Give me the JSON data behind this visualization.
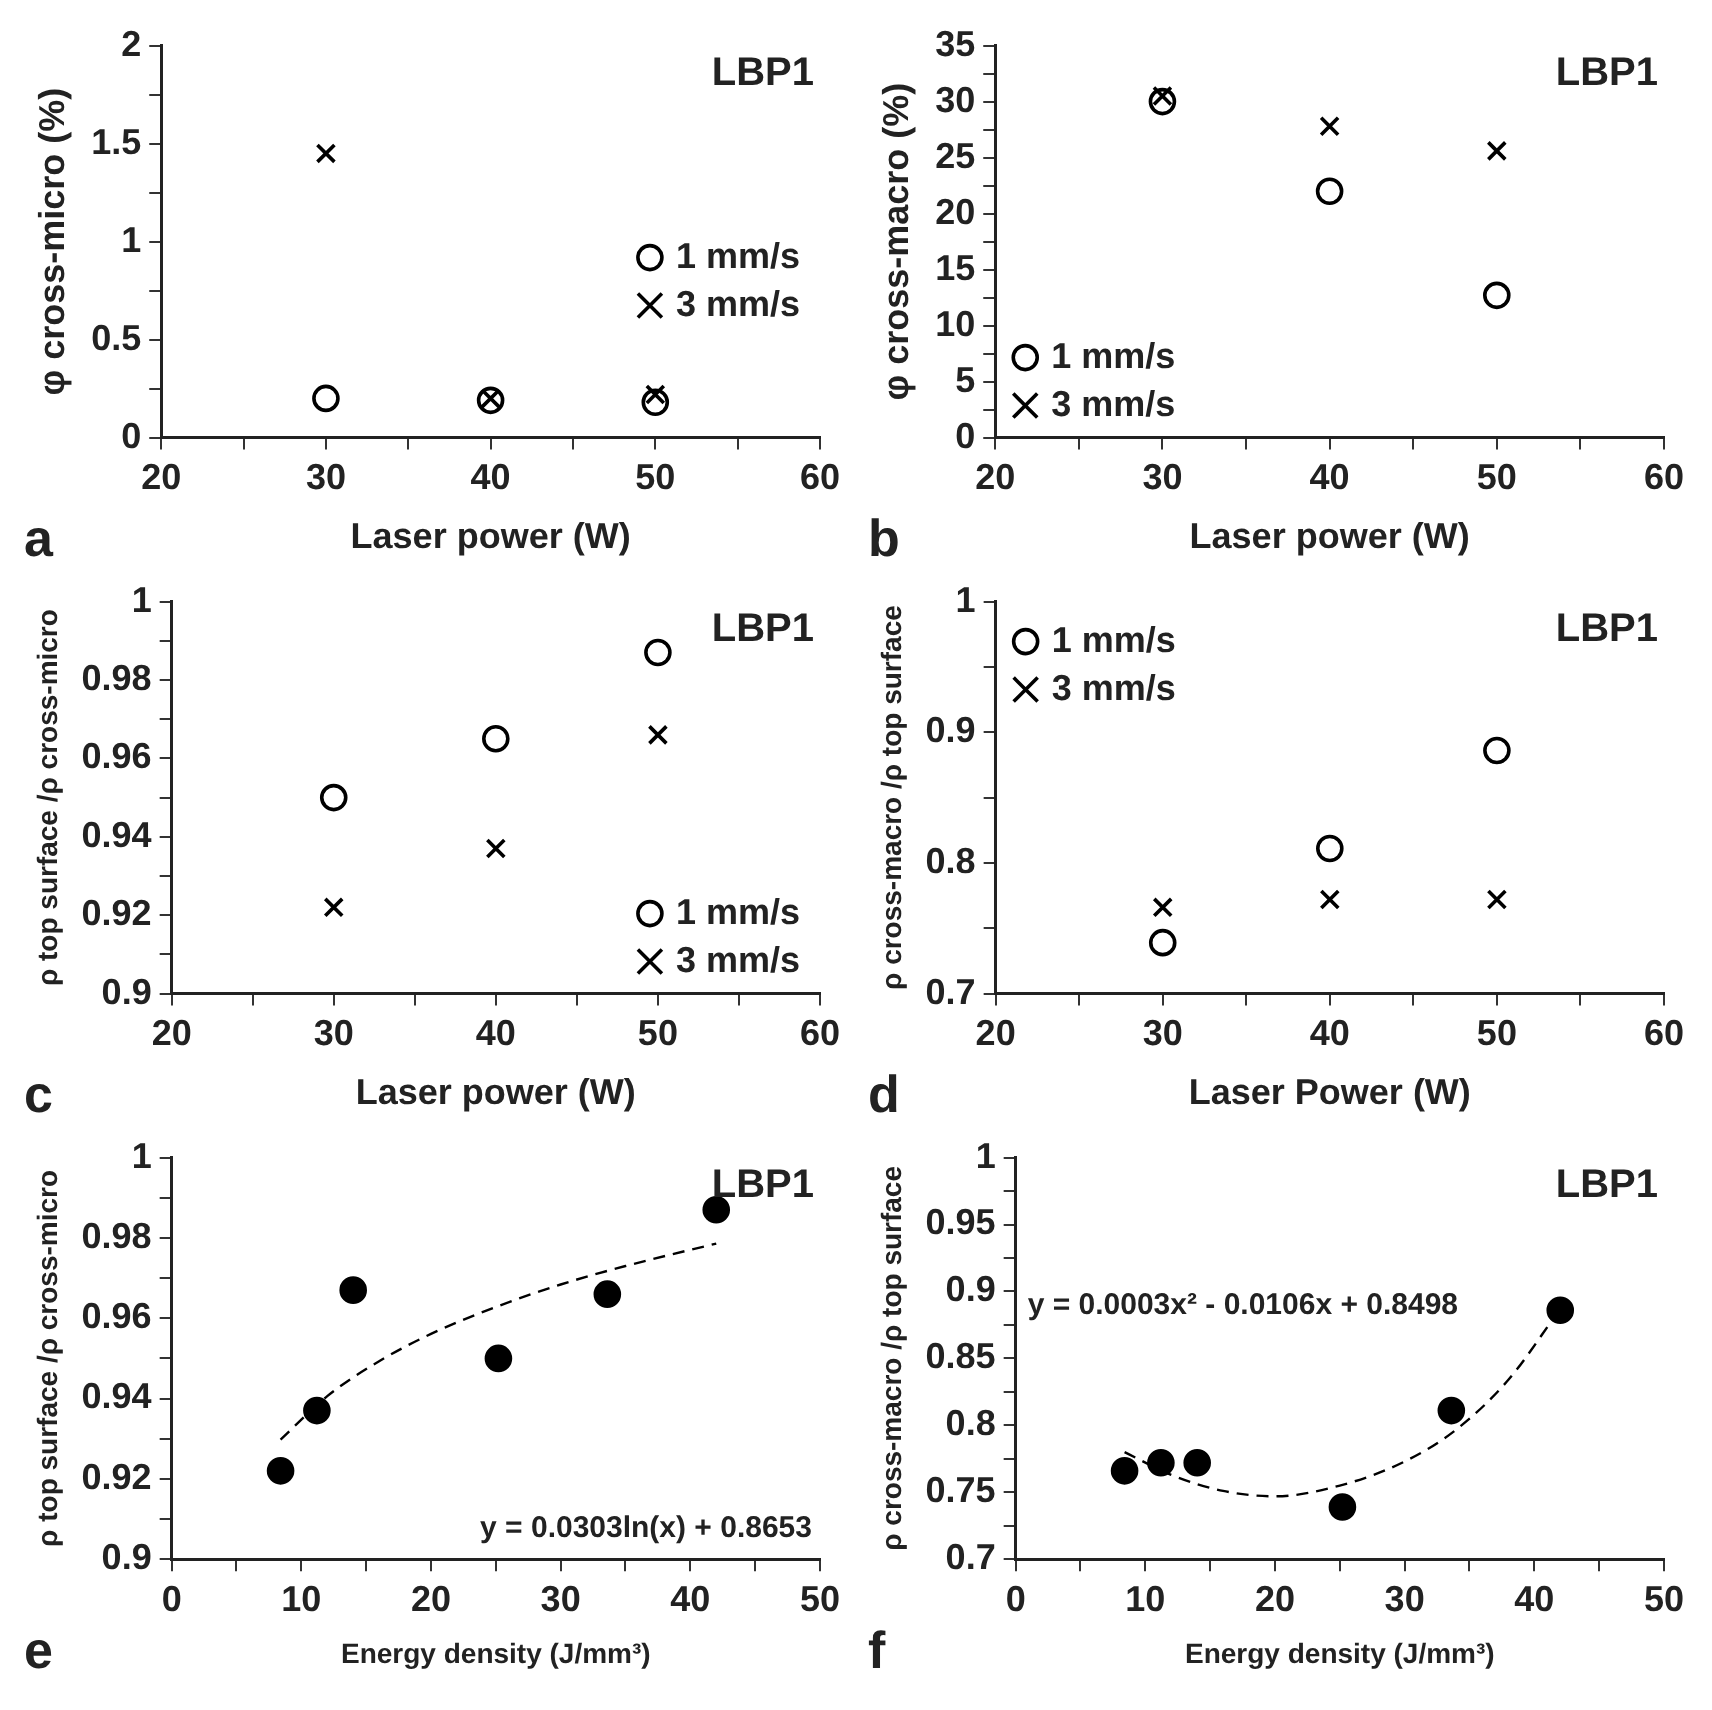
{
  "chart_data": [
    {
      "type": "scatter",
      "xlabel": "Laser power (W)",
      "ylabel": "φ cross-micro (%)",
      "annotations": [
        "LBP1",
        "a"
      ],
      "legend": "right",
      "grid": false,
      "xlim": [
        20,
        60
      ],
      "xticks": [
        20,
        {
          "value": 25,
          "label": null
        },
        30,
        {
          "value": 35,
          "label": null
        },
        40,
        {
          "value": 45,
          "label": null
        },
        50,
        {
          "value": 55,
          "label": null
        },
        60
      ],
      "ylim": [
        0,
        2
      ],
      "yticks": [
        0,
        {
          "value": 0.25,
          "label": null
        },
        0.5,
        {
          "value": 0.75,
          "label": null
        },
        1,
        {
          "value": 1.25,
          "label": null
        },
        1.5,
        {
          "value": 1.75,
          "label": null
        },
        2
      ],
      "series": [
        {
          "name": "1 mm/s",
          "color": "#000000",
          "marker": "circle",
          "x": [
            30,
            40,
            50
          ],
          "values": [
            0.2,
            0.19,
            0.18
          ]
        },
        {
          "name": "3 mm/s",
          "color": "#000000",
          "marker": "cross",
          "x": [
            30,
            40,
            50
          ],
          "values": [
            1.45,
            0.2,
            0.22
          ]
        }
      ]
    },
    {
      "type": "scatter",
      "xlabel": "Laser power (W)",
      "ylabel": "φ cross-macro (%)",
      "annotations": [
        "LBP1",
        "b"
      ],
      "legend": "bottom left",
      "grid": false,
      "xlim": [
        20,
        60
      ],
      "xticks": [
        20,
        {
          "value": 25,
          "label": null
        },
        30,
        {
          "value": 35,
          "label": null
        },
        40,
        {
          "value": 45,
          "label": null
        },
        50,
        {
          "value": 55,
          "label": null
        },
        60
      ],
      "ylim": [
        0,
        35
      ],
      "yticks": [
        0,
        {
          "value": 2.5,
          "label": null
        },
        5,
        {
          "value": 7.5,
          "label": null
        },
        10,
        {
          "value": 12.5,
          "label": null
        },
        15,
        {
          "value": 17.5,
          "label": null
        },
        20,
        {
          "value": 22.5,
          "label": null
        },
        25,
        {
          "value": 27.5,
          "label": null
        },
        30,
        {
          "value": 32.5,
          "label": null
        },
        35
      ],
      "series": [
        {
          "name": "1 mm/s",
          "color": "#000000",
          "marker": "circle",
          "x": [
            30,
            40,
            50
          ],
          "values": [
            30,
            22,
            12.7
          ]
        },
        {
          "name": "3 mm/s",
          "color": "#000000",
          "marker": "cross",
          "x": [
            30,
            40,
            50
          ],
          "values": [
            30.5,
            27.8,
            25.6
          ]
        }
      ]
    },
    {
      "type": "scatter",
      "xlabel": "Laser power (W)",
      "ylabel": "ρ top surface /ρ cross-micro",
      "annotations": [
        "LBP1",
        "c"
      ],
      "legend": "bottom right",
      "grid": false,
      "xlim": [
        20,
        60
      ],
      "xticks": [
        20,
        {
          "value": 25,
          "label": null
        },
        30,
        {
          "value": 35,
          "label": null
        },
        40,
        {
          "value": 45,
          "label": null
        },
        50,
        {
          "value": 55,
          "label": null
        },
        60
      ],
      "ylim": [
        0.9,
        1
      ],
      "yticks": [
        0.9,
        {
          "value": 0.91,
          "label": null
        },
        0.92,
        {
          "value": 0.93,
          "label": null
        },
        0.94,
        {
          "value": 0.95,
          "label": null
        },
        0.96,
        {
          "value": 0.97,
          "label": null
        },
        0.98,
        {
          "value": 0.99,
          "label": null
        },
        1
      ],
      "series": [
        {
          "name": "1 mm/s",
          "color": "#000000",
          "marker": "circle",
          "x": [
            30,
            40,
            50
          ],
          "values": [
            0.95,
            0.965,
            0.987
          ]
        },
        {
          "name": "3 mm/s",
          "color": "#000000",
          "marker": "cross",
          "x": [
            30,
            40,
            50
          ],
          "values": [
            0.922,
            0.937,
            0.966
          ]
        }
      ]
    },
    {
      "type": "scatter",
      "xlabel": "Laser Power (W)",
      "ylabel": "ρ cross-macro /ρ top surface",
      "annotations": [
        "LBP1",
        "d"
      ],
      "legend": "top left",
      "grid": false,
      "xlim": [
        20,
        60
      ],
      "xticks": [
        20,
        {
          "value": 25,
          "label": null
        },
        30,
        {
          "value": 35,
          "label": null
        },
        40,
        {
          "value": 45,
          "label": null
        },
        50,
        {
          "value": 55,
          "label": null
        },
        60
      ],
      "ylim": [
        0.7,
        1
      ],
      "yticks": [
        0.7,
        {
          "value": 0.75,
          "label": null
        },
        0.8,
        {
          "value": 0.85,
          "label": null
        },
        0.9,
        {
          "value": 0.95,
          "label": null
        },
        1
      ],
      "series": [
        {
          "name": "1 mm/s",
          "color": "#000000",
          "marker": "circle",
          "x": [
            30,
            40,
            50
          ],
          "values": [
            0.739,
            0.811,
            0.886
          ]
        },
        {
          "name": "3 mm/s",
          "color": "#000000",
          "marker": "cross",
          "x": [
            30,
            40,
            50
          ],
          "values": [
            0.766,
            0.772,
            0.772
          ]
        }
      ]
    },
    {
      "type": "scatter",
      "xlabel": "Energy density (J/mm³)",
      "ylabel": "ρ top surface /ρ cross-micro",
      "annotations": [
        "LBP1",
        "e",
        "y = 0.0303ln(x) + 0.8653"
      ],
      "grid": false,
      "xlim": [
        0,
        50
      ],
      "xticks": [
        0,
        {
          "value": 5,
          "label": null
        },
        10,
        {
          "value": 15,
          "label": null
        },
        20,
        {
          "value": 25,
          "label": null
        },
        30,
        {
          "value": 35,
          "label": null
        },
        40,
        {
          "value": 45,
          "label": null
        },
        50
      ],
      "ylim": [
        0.9,
        1
      ],
      "yticks": [
        0.9,
        {
          "value": 0.91,
          "label": null
        },
        0.92,
        {
          "value": 0.93,
          "label": null
        },
        0.94,
        {
          "value": 0.95,
          "label": null
        },
        0.96,
        {
          "value": 0.97,
          "label": null
        },
        0.98,
        {
          "value": 0.99,
          "label": null
        },
        1
      ],
      "series": [
        {
          "color": "#000000",
          "marker": "circle",
          "x": [
            8.4,
            11.2,
            14,
            25.2,
            33.6,
            42
          ],
          "values": [
            0.922,
            0.937,
            0.967,
            0.95,
            0.966,
            0.987
          ]
        },
        {
          "type": "line",
          "color": "#000000",
          "marker": "none",
          "line_style": "dashed",
          "x": [
            8.4,
            12,
            16,
            20,
            25,
            30,
            35,
            42
          ],
          "values": [
            0.9298,
            0.9406,
            0.9493,
            0.9561,
            0.9628,
            0.9684,
            0.973,
            0.9786
          ]
        }
      ]
    },
    {
      "type": "scatter",
      "xlabel": "Energy density (J/mm³)",
      "ylabel": "ρ cross-macro /ρ top surface",
      "annotations": [
        "LBP1",
        "f",
        "y = 0.0003x² - 0.0106x + 0.8498"
      ],
      "grid": false,
      "xlim": [
        0,
        50
      ],
      "xticks": [
        0,
        {
          "value": 5,
          "label": null
        },
        10,
        {
          "value": 15,
          "label": null
        },
        20,
        {
          "value": 25,
          "label": null
        },
        30,
        {
          "value": 35,
          "label": null
        },
        40,
        {
          "value": 45,
          "label": null
        },
        50
      ],
      "ylim": [
        0.7,
        1
      ],
      "yticks": [
        0.7,
        {
          "value": 0.725,
          "label": null
        },
        0.75,
        {
          "value": 0.775,
          "label": null
        },
        0.8,
        {
          "value": 0.825,
          "label": null
        },
        0.85,
        {
          "value": 0.875,
          "label": null
        },
        0.9,
        {
          "value": 0.925,
          "label": null
        },
        0.95,
        {
          "value": 0.975,
          "label": null
        },
        1
      ],
      "series": [
        {
          "color": "#000000",
          "marker": "circle",
          "x": [
            8.4,
            11.2,
            14,
            25.2,
            33.6,
            42
          ],
          "values": [
            0.766,
            0.772,
            0.772,
            0.739,
            0.811,
            0.886
          ]
        },
        {
          "type": "line",
          "color": "#000000",
          "marker": "none",
          "line_style": "dashed",
          "x": [
            8.4,
            12,
            16,
            20,
            25,
            30,
            34,
            38,
            42
          ],
          "values": [
            0.78,
            0.763,
            0.751,
            0.747,
            0.755,
            0.773,
            0.797,
            0.834,
            0.887
          ]
        }
      ]
    }
  ]
}
